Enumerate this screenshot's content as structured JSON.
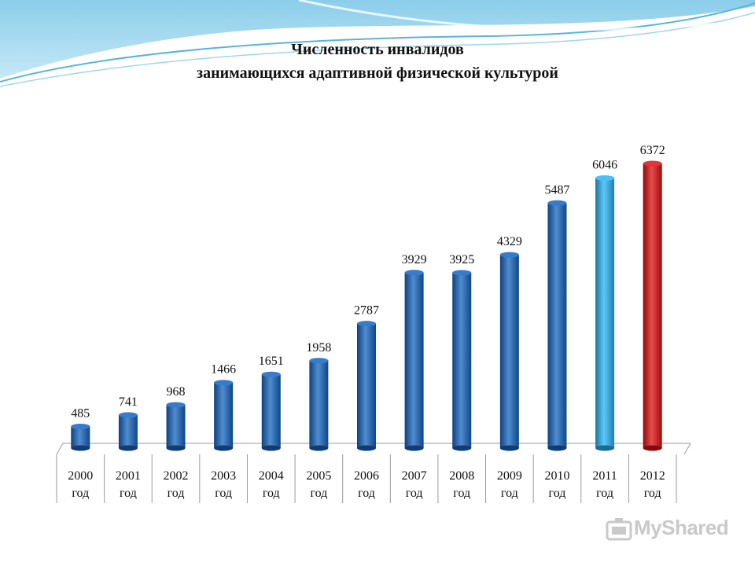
{
  "chart_data": {
    "type": "bar",
    "title_line1": "Численность инвалидов",
    "title_line2": "занимающихся адаптивной физической культурой",
    "categories": [
      "2000 год",
      "2001 год",
      "2002 год",
      "2003 год",
      "2004 год",
      "2005 год",
      "2006 год",
      "2007 год",
      "2008 год",
      "2009 год",
      "2010 год",
      "2011 год",
      "2012 год"
    ],
    "category_year": [
      "2000",
      "2001",
      "2002",
      "2003",
      "2004",
      "2005",
      "2006",
      "2007",
      "2008",
      "2009",
      "2010",
      "2011",
      "2012"
    ],
    "category_suffix": "год",
    "values": [
      485,
      741,
      968,
      1466,
      1651,
      1958,
      2787,
      3929,
      3925,
      4329,
      5487,
      6046,
      6372
    ],
    "value_labels": [
      "485",
      "741",
      "968",
      "1466",
      "1651",
      "1958",
      "2787",
      "3929",
      "3925",
      "4329",
      "5487",
      "6046",
      "6372"
    ],
    "ylim": [
      0,
      6372
    ],
    "grid": false,
    "legend": "none",
    "colors": {
      "default": "#1565c0",
      "highlight_2011": "#29b6f6",
      "highlight_2012": "#e01010"
    },
    "bar_color_keys": [
      "default",
      "default",
      "default",
      "default",
      "default",
      "default",
      "default",
      "default",
      "default",
      "default",
      "default",
      "highlight_2011",
      "highlight_2012"
    ]
  },
  "watermark": {
    "text": "MyShared",
    "icon": "mortarboard-icon"
  }
}
